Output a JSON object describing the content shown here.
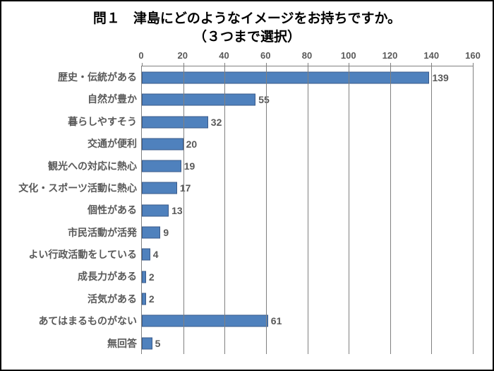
{
  "chart": {
    "type": "bar-horizontal",
    "title_line1": "問１　津島にどのようなイメージをお持ちですか。",
    "title_line2": "（３つまで選択）",
    "title_fontsize": 19,
    "xlim": [
      0,
      160
    ],
    "xtick_step": 20,
    "bar_color": "#4f81bd",
    "bar_border_color": "#3a5a8a",
    "grid_color": "#808080",
    "axis_color": "#808080",
    "label_color": "#595959",
    "label_fontsize": 14,
    "tick_fontsize": 13,
    "value_fontsize": 14,
    "background_color": "#ffffff",
    "categories": [
      "歴史・伝統がある",
      "自然が豊か",
      "暮らしやすそう",
      "交通が便利",
      "観光への対応に熱心",
      "文化・スポーツ活動に熱心",
      "個性がある",
      "市民活動が活発",
      "よい行政活動をしている",
      "成長力がある",
      "活気がある",
      "あてはまるものがない",
      "無回答"
    ],
    "values": [
      139,
      55,
      32,
      20,
      19,
      17,
      13,
      9,
      4,
      2,
      2,
      61,
      5
    ],
    "xticks": [
      0,
      20,
      40,
      60,
      80,
      100,
      120,
      140,
      160
    ]
  }
}
